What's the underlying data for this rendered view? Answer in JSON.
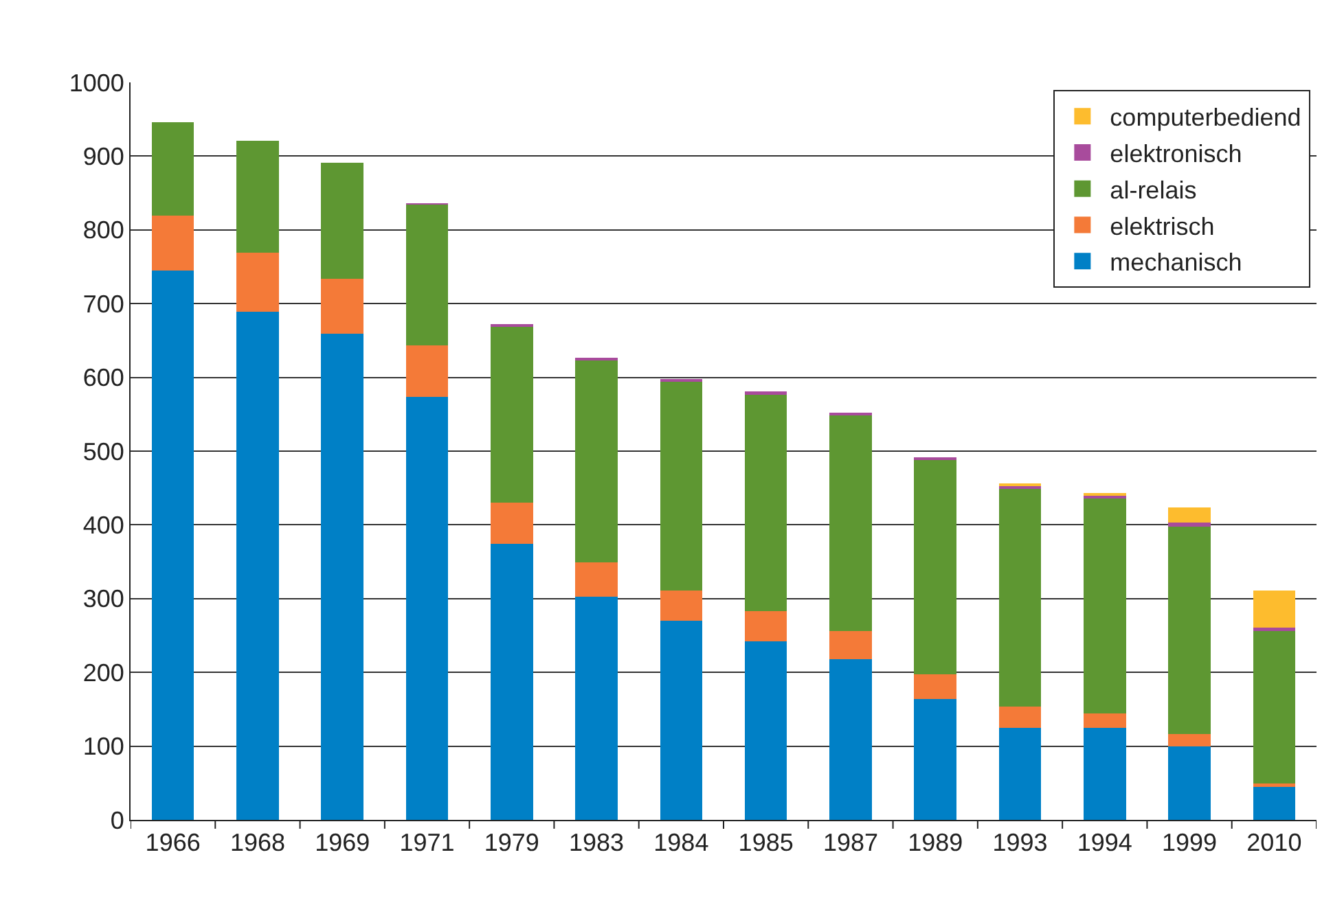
{
  "chart_data": {
    "type": "bar",
    "stacked": true,
    "categories": [
      "1966",
      "1968",
      "1969",
      "1971",
      "1979",
      "1983",
      "1984",
      "1985",
      "1987",
      "1989",
      "1993",
      "1994",
      "1999",
      "2010"
    ],
    "series": [
      {
        "name": "mechanisch",
        "color": "#0080c6",
        "values": [
          745,
          689,
          659,
          574,
          374,
          303,
          270,
          242,
          218,
          164,
          125,
          125,
          100,
          46
        ]
      },
      {
        "name": "elektrisch",
        "color": "#f47a38",
        "values": [
          74,
          80,
          75,
          69,
          56,
          46,
          41,
          41,
          38,
          33,
          29,
          19,
          16,
          3
        ]
      },
      {
        "name": "al-relais",
        "color": "#5e9732",
        "values": [
          127,
          152,
          157,
          192,
          240,
          274,
          284,
          293,
          292,
          291,
          295,
          292,
          282,
          207
        ]
      },
      {
        "name": "elektronisch",
        "color": "#a84b9c",
        "values": [
          0,
          0,
          0,
          1,
          2,
          4,
          3,
          5,
          4,
          4,
          4,
          4,
          5,
          5
        ]
      },
      {
        "name": "computerbediend",
        "color": "#fdbc2e",
        "values": [
          0,
          0,
          0,
          0,
          0,
          0,
          0,
          0,
          0,
          0,
          2,
          3,
          21,
          50
        ]
      }
    ],
    "ylim": [
      0,
      1000
    ],
    "yticks": [
      0,
      100,
      200,
      300,
      400,
      500,
      600,
      700,
      800,
      900,
      1000
    ],
    "grid": "y",
    "legend": "top right"
  }
}
